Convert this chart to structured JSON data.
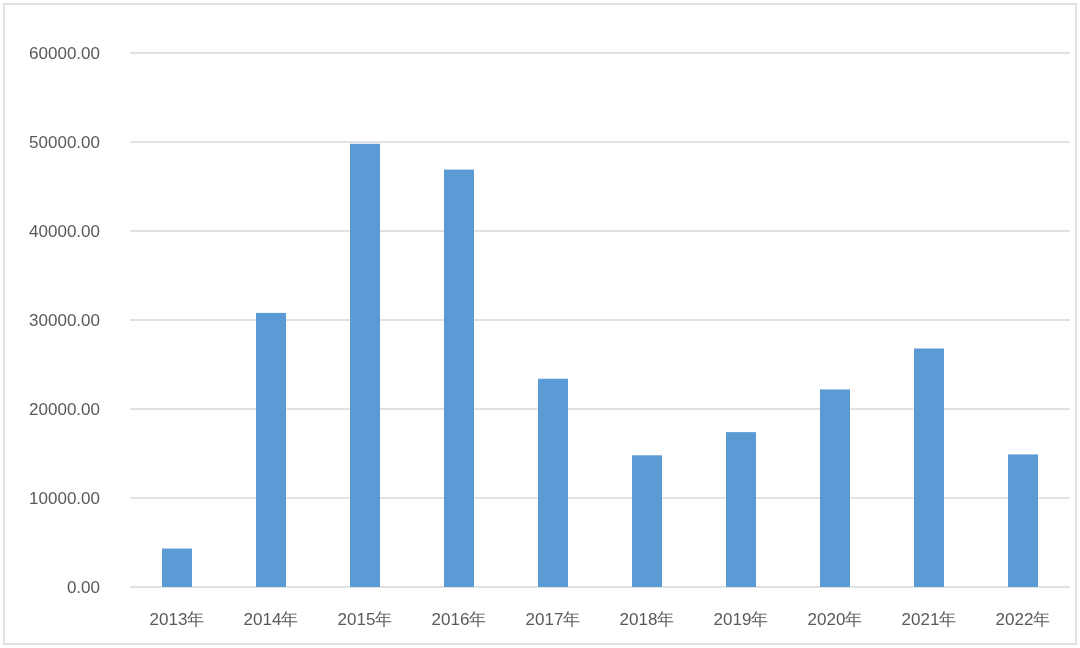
{
  "chart_data": {
    "type": "bar",
    "categories": [
      "2013年",
      "2014年",
      "2015年",
      "2016年",
      "2017年",
      "2018年",
      "2019年",
      "2020年",
      "2021年",
      "2022年"
    ],
    "values": [
      4320,
      30800,
      49800,
      46900,
      23400,
      14800,
      17400,
      22200,
      26800,
      14900
    ],
    "color": "#5b9bd5",
    "ylim": [
      0,
      60000
    ],
    "yticks": [
      {
        "value": 0,
        "label": "0.00"
      },
      {
        "value": 10000,
        "label": "10000.00"
      },
      {
        "value": 20000,
        "label": "20000.00"
      },
      {
        "value": 30000,
        "label": "30000.00"
      },
      {
        "value": 40000,
        "label": "40000.00"
      },
      {
        "value": 50000,
        "label": "50000.00"
      },
      {
        "value": 60000,
        "label": "60000.00"
      }
    ],
    "grid": "y"
  }
}
